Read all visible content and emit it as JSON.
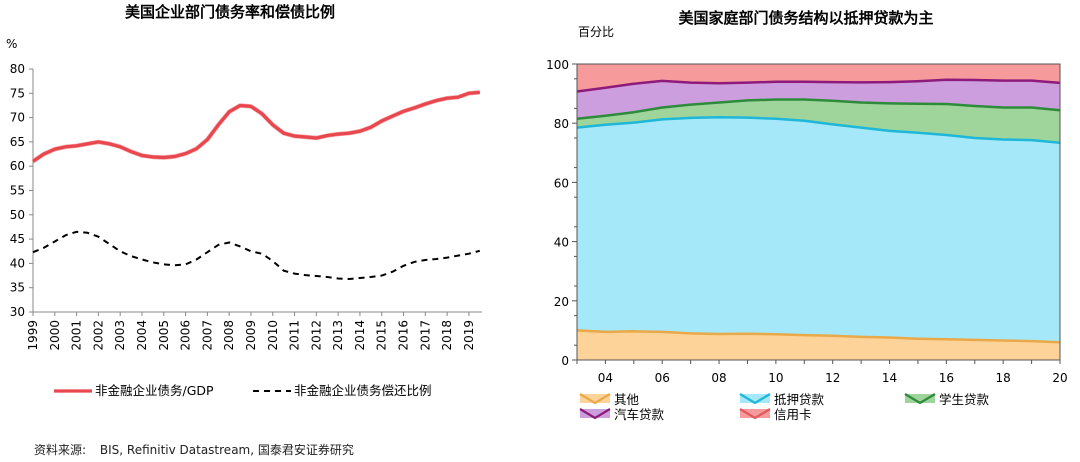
{
  "source": {
    "label": "资料来源:",
    "text": "BIS, Refinitiv Datastream, 国泰君安证券研究"
  },
  "chart_data": [
    {
      "type": "line",
      "title": "美国企业部门债务率和偿债比例",
      "ylabel": "%",
      "ylim": [
        30,
        80
      ],
      "yticks": [
        30,
        35,
        40,
        45,
        50,
        55,
        60,
        65,
        70,
        75,
        80
      ],
      "xlim": [
        1999,
        2019.6
      ],
      "xticks": [
        "1999",
        "2000",
        "2001",
        "2002",
        "2003",
        "2004",
        "2005",
        "2006",
        "2007",
        "2008",
        "2009",
        "2010",
        "2011",
        "2012",
        "2013",
        "2014",
        "2015",
        "2016",
        "2017",
        "2018",
        "2019"
      ],
      "grid": false,
      "legend_position": "bottom",
      "series": [
        {
          "name": "非金融企业债务/GDP",
          "color": "#e8474d",
          "style": "solid",
          "x": [
            1999,
            1999.5,
            2000,
            2000.5,
            2001,
            2001.5,
            2002,
            2002.5,
            2003,
            2003.5,
            2004,
            2004.5,
            2005,
            2005.5,
            2006,
            2006.5,
            2007,
            2007.5,
            2008,
            2008.5,
            2009,
            2009.5,
            2010,
            2010.5,
            2011,
            2011.5,
            2012,
            2012.5,
            2013,
            2013.5,
            2014,
            2014.5,
            2015,
            2015.5,
            2016,
            2016.5,
            2017,
            2017.5,
            2018,
            2018.5,
            2019,
            2019.5
          ],
          "values": [
            61,
            62.5,
            63.5,
            64,
            64.2,
            64.6,
            65,
            64.6,
            64,
            63,
            62.2,
            61.9,
            61.8,
            62,
            62.6,
            63.6,
            65.5,
            68.5,
            71.2,
            72.5,
            72.3,
            70.8,
            68.5,
            66.8,
            66.2,
            66,
            65.8,
            66.3,
            66.6,
            66.8,
            67.2,
            68,
            69.3,
            70.3,
            71.3,
            72,
            72.8,
            73.5,
            74,
            74.2,
            75,
            75.2
          ]
        },
        {
          "name": "非金融企业债务偿还比例",
          "color": "#000000",
          "style": "dashed",
          "x": [
            1999,
            1999.5,
            2000,
            2000.5,
            2001,
            2001.5,
            2002,
            2002.5,
            2003,
            2003.5,
            2004,
            2004.5,
            2005,
            2005.5,
            2006,
            2006.5,
            2007,
            2007.5,
            2008,
            2008.5,
            2009,
            2009.5,
            2010,
            2010.5,
            2011,
            2011.5,
            2012,
            2012.5,
            2013,
            2013.5,
            2014,
            2014.5,
            2015,
            2015.5,
            2016,
            2016.5,
            2017,
            2017.5,
            2018,
            2018.5,
            2019,
            2019.5
          ],
          "values": [
            42.3,
            43.2,
            44.5,
            45.8,
            46.5,
            46.3,
            45.5,
            44,
            42.5,
            41.5,
            40.8,
            40.2,
            39.8,
            39.6,
            39.8,
            40.8,
            42.3,
            43.8,
            44.3,
            43.5,
            42.5,
            42,
            40.5,
            38.5,
            37.9,
            37.6,
            37.4,
            37.2,
            36.9,
            36.8,
            37,
            37.2,
            37.5,
            38.3,
            39.5,
            40.3,
            40.7,
            40.9,
            41.2,
            41.6,
            42,
            42.6
          ]
        }
      ]
    },
    {
      "type": "area",
      "stacked": true,
      "title": "美国家庭部门债务结构以抵押贷款为主",
      "ylabel": "百分比",
      "ylim": [
        0,
        100
      ],
      "yticks": [
        0,
        20,
        40,
        60,
        80,
        100
      ],
      "xlim": [
        2003,
        2020
      ],
      "xticks": [
        "04",
        "06",
        "08",
        "10",
        "12",
        "14",
        "16",
        "18",
        "20"
      ],
      "grid": false,
      "legend_position": "bottom",
      "x": [
        2003,
        2004,
        2005,
        2006,
        2007,
        2008,
        2009,
        2010,
        2011,
        2012,
        2013,
        2014,
        2015,
        2016,
        2017,
        2018,
        2019,
        2020
      ],
      "series": [
        {
          "name": "其他",
          "fill": "#fdd39a",
          "line": "#e9a948",
          "values": [
            10,
            9.5,
            9.7,
            9.5,
            9,
            8.8,
            8.9,
            8.7,
            8.4,
            8.2,
            7.8,
            7.6,
            7.2,
            7.0,
            6.8,
            6.6,
            6.4,
            6.0
          ]
        },
        {
          "name": "抵押贷款",
          "fill": "#a5e8fa",
          "line": "#1fb7d8",
          "values": [
            68.5,
            70,
            70.5,
            71.8,
            72.8,
            73.2,
            73,
            72.8,
            72.4,
            71.4,
            70.7,
            69.8,
            69.6,
            69.0,
            68.2,
            67.9,
            67.9,
            67.4
          ]
        },
        {
          "name": "学生贷款",
          "fill": "#9fd49a",
          "line": "#2e8b3c",
          "values": [
            3,
            3,
            3.5,
            4,
            4.5,
            5,
            5.8,
            6.5,
            7.2,
            8,
            8.5,
            9.3,
            9.8,
            10.5,
            10.8,
            10.8,
            11,
            11
          ]
        },
        {
          "name": "汽车贷款",
          "fill": "#cd9ede",
          "line": "#8e1b7c",
          "values": [
            9.2,
            9.5,
            9.6,
            9,
            7.4,
            6.5,
            6,
            6,
            6,
            6.3,
            6.8,
            7.2,
            7.6,
            8.2,
            8.8,
            9.1,
            9.1,
            9.2
          ]
        },
        {
          "name": "信用卡",
          "fill": "#f79a9c",
          "line": "#e05a5e",
          "values": [
            9.3,
            8,
            6.7,
            5.7,
            6.3,
            6.5,
            6.3,
            6,
            6,
            6.1,
            6.2,
            6.1,
            5.8,
            5.3,
            5.4,
            5.6,
            5.6,
            6.4
          ]
        }
      ]
    }
  ]
}
